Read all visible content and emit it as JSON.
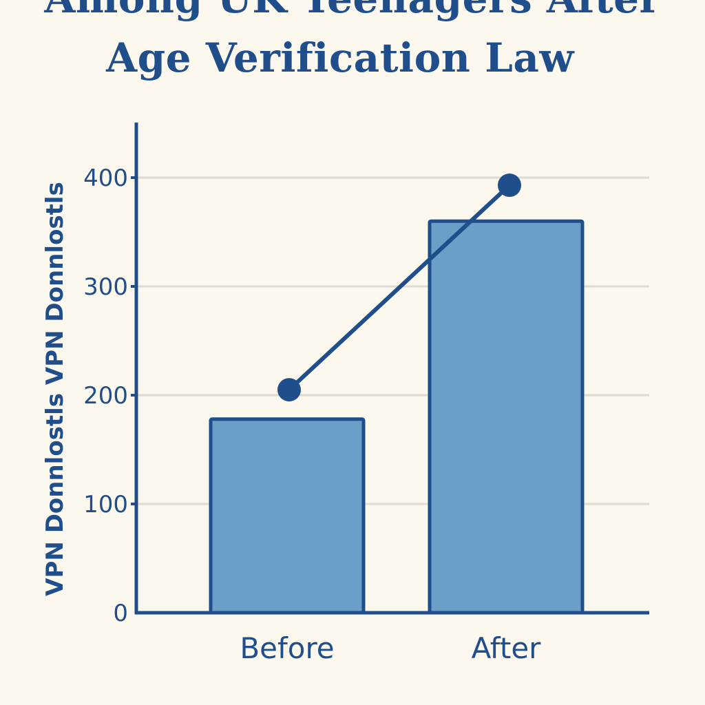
{
  "chart_data": {
    "type": "bar",
    "title_lines": [
      "Among UK Teenagers After",
      "Age Verification Law"
    ],
    "xlabel": "",
    "ylabel": "VPN Donnlostls VPN Donnlostls",
    "categories": [
      "Before",
      "After"
    ],
    "series": [
      {
        "type": "bar",
        "values": [
          178,
          360
        ]
      },
      {
        "type": "line",
        "values": [
          205,
          393
        ]
      }
    ],
    "ylim": [
      0,
      450
    ],
    "yticks": [
      0,
      100,
      200,
      300,
      400
    ],
    "grid": true,
    "legend": "none"
  },
  "colors": {
    "background": "#fdf8ed",
    "bar_fill": "#6b9fc8",
    "bar_stroke": "#1f4e8a",
    "line": "#1f4e8a",
    "axis": "#1f4e8a",
    "grid": "#dcdcd4",
    "text": "#1f4e8a"
  }
}
